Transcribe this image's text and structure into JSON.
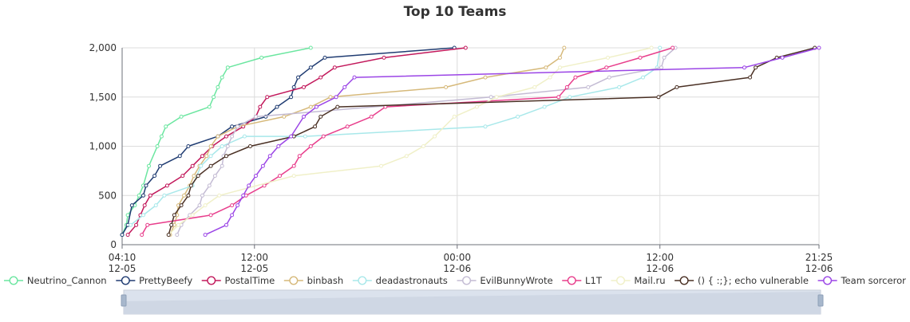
{
  "chart_data": {
    "type": "line",
    "title": "Top 10 Teams",
    "xlabel": "",
    "ylabel": "",
    "ylim": [
      0,
      2000
    ],
    "xlim": [
      "12-05 04:10",
      "12-06 21:25"
    ],
    "grid": true,
    "legend_position": "bottom",
    "y_ticks": [
      {
        "value": 0,
        "label": "0"
      },
      {
        "value": 500,
        "label": "500"
      },
      {
        "value": 1000,
        "label": "1,000"
      },
      {
        "value": 1500,
        "label": "1,500"
      },
      {
        "value": 2000,
        "label": "2,000"
      }
    ],
    "x_ticks": [
      {
        "time": "12-05 04:10",
        "label_time": "04:10",
        "label_date": "12-05"
      },
      {
        "time": "12-05 12:00",
        "label_time": "12:00",
        "label_date": "12-05"
      },
      {
        "time": "12-06 00:00",
        "label_time": "00:00",
        "label_date": "12-06"
      },
      {
        "time": "12-06 12:00",
        "label_time": "12:00",
        "label_date": "12-06"
      },
      {
        "time": "12-06 21:25",
        "label_time": "21:25",
        "label_date": "12-06"
      }
    ],
    "series": [
      {
        "name": "Neutrino_Cannon",
        "color": "#6be6a0",
        "points": [
          [
            "12-05 04:10",
            100
          ],
          [
            "12-05 04:25",
            200
          ],
          [
            "12-05 04:30",
            300
          ],
          [
            "12-05 04:55",
            400
          ],
          [
            "12-05 05:10",
            500
          ],
          [
            "12-05 05:25",
            600
          ],
          [
            "12-05 05:45",
            800
          ],
          [
            "12-05 06:15",
            1000
          ],
          [
            "12-05 06:30",
            1100
          ],
          [
            "12-05 06:45",
            1200
          ],
          [
            "12-05 07:40",
            1300
          ],
          [
            "12-05 09:20",
            1400
          ],
          [
            "12-05 09:35",
            1500
          ],
          [
            "12-05 09:50",
            1600
          ],
          [
            "12-05 10:05",
            1700
          ],
          [
            "12-05 10:25",
            1800
          ],
          [
            "12-05 12:25",
            1900
          ],
          [
            "12-05 15:20",
            2000
          ]
        ]
      },
      {
        "name": "PrettyBeefy",
        "color": "#203c72",
        "points": [
          [
            "12-05 04:10",
            100
          ],
          [
            "12-05 04:30",
            200
          ],
          [
            "12-05 04:45",
            400
          ],
          [
            "12-05 05:25",
            500
          ],
          [
            "12-05 05:35",
            600
          ],
          [
            "12-05 06:05",
            700
          ],
          [
            "12-05 06:25",
            800
          ],
          [
            "12-05 07:35",
            900
          ],
          [
            "12-05 08:05",
            1000
          ],
          [
            "12-05 09:50",
            1100
          ],
          [
            "12-05 10:40",
            1200
          ],
          [
            "12-05 12:40",
            1300
          ],
          [
            "12-05 13:20",
            1400
          ],
          [
            "12-05 14:10",
            1500
          ],
          [
            "12-05 14:20",
            1600
          ],
          [
            "12-05 14:35",
            1700
          ],
          [
            "12-05 15:20",
            1800
          ],
          [
            "12-05 16:10",
            1900
          ],
          [
            "12-05 23:50",
            2000
          ]
        ]
      },
      {
        "name": "PostalTime",
        "color": "#c2185b",
        "points": [
          [
            "12-05 04:30",
            100
          ],
          [
            "12-05 05:00",
            200
          ],
          [
            "12-05 05:15",
            300
          ],
          [
            "12-05 05:30",
            400
          ],
          [
            "12-05 05:50",
            500
          ],
          [
            "12-05 06:50",
            600
          ],
          [
            "12-05 07:45",
            700
          ],
          [
            "12-05 08:20",
            800
          ],
          [
            "12-05 08:55",
            900
          ],
          [
            "12-05 09:30",
            1000
          ],
          [
            "12-05 10:20",
            1100
          ],
          [
            "12-05 11:20",
            1200
          ],
          [
            "12-05 12:05",
            1300
          ],
          [
            "12-05 12:20",
            1400
          ],
          [
            "12-05 12:45",
            1500
          ],
          [
            "12-05 14:55",
            1600
          ],
          [
            "12-05 15:55",
            1700
          ],
          [
            "12-05 16:45",
            1800
          ],
          [
            "12-05 19:40",
            1900
          ],
          [
            "12-06 00:30",
            2000
          ]
        ]
      },
      {
        "name": "binbash",
        "color": "#d6b97a",
        "points": [
          [
            "12-05 07:00",
            100
          ],
          [
            "12-05 07:15",
            200
          ],
          [
            "12-05 07:25",
            300
          ],
          [
            "12-05 07:30",
            400
          ],
          [
            "12-05 07:50",
            500
          ],
          [
            "12-05 08:10",
            600
          ],
          [
            "12-05 08:25",
            700
          ],
          [
            "12-05 08:45",
            800
          ],
          [
            "12-05 09:10",
            900
          ],
          [
            "12-05 09:25",
            1000
          ],
          [
            "12-05 09:50",
            1100
          ],
          [
            "12-05 11:00",
            1200
          ],
          [
            "12-05 13:45",
            1300
          ],
          [
            "12-05 15:20",
            1400
          ],
          [
            "12-05 16:30",
            1500
          ],
          [
            "12-05 23:20",
            1600
          ],
          [
            "12-06 01:40",
            1700
          ],
          [
            "12-06 05:15",
            1800
          ],
          [
            "12-06 06:05",
            1900
          ],
          [
            "12-06 06:20",
            2000
          ]
        ]
      },
      {
        "name": "deadastronauts",
        "color": "#a8e8ea",
        "points": [
          [
            "12-05 04:40",
            200
          ],
          [
            "12-05 05:25",
            300
          ],
          [
            "12-05 06:10",
            400
          ],
          [
            "12-05 06:40",
            500
          ],
          [
            "12-05 08:20",
            600
          ],
          [
            "12-05 08:50",
            800
          ],
          [
            "12-05 09:25",
            900
          ],
          [
            "12-05 10:05",
            1000
          ],
          [
            "12-05 11:25",
            1100
          ],
          [
            "12-05 15:00",
            1100
          ],
          [
            "12-06 01:40",
            1200
          ],
          [
            "12-06 03:35",
            1300
          ],
          [
            "12-06 05:10",
            1400
          ],
          [
            "12-06 06:40",
            1500
          ],
          [
            "12-06 09:35",
            1600
          ],
          [
            "12-06 11:00",
            1700
          ],
          [
            "12-06 11:50",
            1800
          ],
          [
            "12-06 12:00",
            2000
          ]
        ]
      },
      {
        "name": "EvilBunnyWrote",
        "color": "#c4bcd4",
        "points": [
          [
            "12-05 07:25",
            100
          ],
          [
            "12-05 07:40",
            200
          ],
          [
            "12-05 08:10",
            300
          ],
          [
            "12-05 08:45",
            400
          ],
          [
            "12-05 08:55",
            500
          ],
          [
            "12-05 09:20",
            600
          ],
          [
            "12-05 09:40",
            700
          ],
          [
            "12-05 10:05",
            800
          ],
          [
            "12-05 10:10",
            900
          ],
          [
            "12-05 10:25",
            1000
          ],
          [
            "12-05 10:40",
            1100
          ],
          [
            "12-05 11:00",
            1200
          ],
          [
            "12-05 12:05",
            1300
          ],
          [
            "12-06 02:00",
            1500
          ],
          [
            "12-06 07:45",
            1600
          ],
          [
            "12-06 09:00",
            1700
          ],
          [
            "12-06 12:05",
            1800
          ],
          [
            "12-06 12:15",
            1900
          ],
          [
            "12-06 12:55",
            2000
          ]
        ]
      },
      {
        "name": "L1T",
        "color": "#e83e8c",
        "points": [
          [
            "12-05 05:20",
            100
          ],
          [
            "12-05 05:40",
            200
          ],
          [
            "12-05 09:25",
            300
          ],
          [
            "12-05 10:40",
            400
          ],
          [
            "12-05 11:30",
            500
          ],
          [
            "12-05 12:35",
            600
          ],
          [
            "12-05 13:30",
            700
          ],
          [
            "12-05 14:20",
            800
          ],
          [
            "12-05 14:40",
            900
          ],
          [
            "12-05 15:20",
            1000
          ],
          [
            "12-05 16:05",
            1100
          ],
          [
            "12-05 17:30",
            1200
          ],
          [
            "12-05 18:55",
            1300
          ],
          [
            "12-05 19:45",
            1400
          ],
          [
            "12-06 06:00",
            1500
          ],
          [
            "12-06 06:30",
            1600
          ],
          [
            "12-06 07:00",
            1700
          ],
          [
            "12-06 08:50",
            1800
          ],
          [
            "12-06 10:50",
            1900
          ],
          [
            "12-06 12:45",
            2000
          ]
        ]
      },
      {
        "name": "Mail.ru",
        "color": "#f0f0c8",
        "points": [
          [
            "12-05 06:55",
            100
          ],
          [
            "12-05 07:30",
            200
          ],
          [
            "12-05 08:20",
            300
          ],
          [
            "12-05 09:05",
            400
          ],
          [
            "12-05 09:55",
            500
          ],
          [
            "12-05 14:20",
            700
          ],
          [
            "12-05 19:30",
            800
          ],
          [
            "12-05 21:00",
            900
          ],
          [
            "12-05 22:00",
            1000
          ],
          [
            "12-05 22:40",
            1100
          ],
          [
            "12-05 23:50",
            1300
          ],
          [
            "12-06 01:10",
            1400
          ],
          [
            "12-06 02:20",
            1500
          ],
          [
            "12-06 04:35",
            1600
          ],
          [
            "12-06 05:30",
            1700
          ],
          [
            "12-06 06:05",
            1800
          ],
          [
            "12-06 08:55",
            1900
          ],
          [
            "12-06 11:30",
            2000
          ]
        ]
      },
      {
        "name": "() { :;}; echo vulnerable",
        "color": "#4a3024",
        "points": [
          [
            "12-05 06:55",
            100
          ],
          [
            "12-05 07:05",
            200
          ],
          [
            "12-05 07:15",
            300
          ],
          [
            "12-05 07:40",
            400
          ],
          [
            "12-05 08:05",
            500
          ],
          [
            "12-05 08:15",
            600
          ],
          [
            "12-05 08:40",
            700
          ],
          [
            "12-05 09:25",
            800
          ],
          [
            "12-05 10:20",
            900
          ],
          [
            "12-05 11:45",
            1000
          ],
          [
            "12-05 14:20",
            1100
          ],
          [
            "12-05 15:35",
            1200
          ],
          [
            "12-05 15:55",
            1300
          ],
          [
            "12-05 16:55",
            1400
          ],
          [
            "12-06 11:55",
            1500
          ],
          [
            "12-06 13:00",
            1600
          ],
          [
            "12-06 17:20",
            1700
          ],
          [
            "12-06 17:40",
            1800
          ],
          [
            "12-06 18:55",
            1900
          ],
          [
            "12-06 21:10",
            2000
          ]
        ]
      },
      {
        "name": "Team sorceror",
        "color": "#9b45e6",
        "points": [
          [
            "12-05 09:05",
            100
          ],
          [
            "12-05 10:20",
            200
          ],
          [
            "12-05 10:40",
            300
          ],
          [
            "12-05 11:00",
            400
          ],
          [
            "12-05 11:20",
            500
          ],
          [
            "12-05 11:40",
            600
          ],
          [
            "12-05 12:05",
            700
          ],
          [
            "12-05 12:30",
            800
          ],
          [
            "12-05 12:55",
            900
          ],
          [
            "12-05 13:25",
            1000
          ],
          [
            "12-05 14:10",
            1100
          ],
          [
            "12-05 14:55",
            1300
          ],
          [
            "12-05 15:40",
            1400
          ],
          [
            "12-05 16:50",
            1500
          ],
          [
            "12-05 17:20",
            1600
          ],
          [
            "12-05 17:55",
            1700
          ],
          [
            "12-06 17:00",
            1800
          ],
          [
            "12-06 19:15",
            1900
          ],
          [
            "12-06 21:25",
            2000
          ]
        ]
      }
    ]
  }
}
